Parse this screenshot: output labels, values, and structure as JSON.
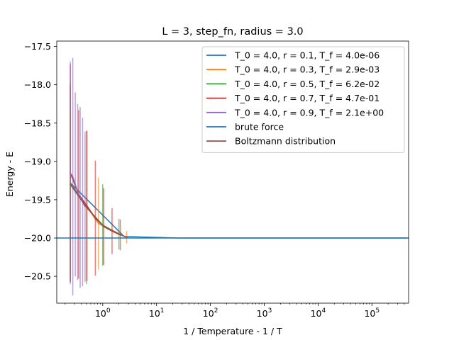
{
  "chart_data": {
    "type": "line",
    "title": "L = 3, step_fn, radius = 3.0",
    "xlabel": "1 / Temperature - 1 / T",
    "ylabel": "Energy - E",
    "xscale": "log",
    "xlim": [
      0.14,
      480000
    ],
    "ylim": [
      -20.85,
      -17.43
    ],
    "grid": false,
    "legend_position": "top-right",
    "x_ticks": [
      {
        "value": 1,
        "base": "10",
        "exp": "0"
      },
      {
        "value": 10,
        "base": "10",
        "exp": "1"
      },
      {
        "value": 100,
        "base": "10",
        "exp": "2"
      },
      {
        "value": 1000,
        "base": "10",
        "exp": "3"
      },
      {
        "value": 10000,
        "base": "10",
        "exp": "4"
      },
      {
        "value": 100000,
        "base": "10",
        "exp": "5"
      }
    ],
    "y_ticks": [
      {
        "value": -17.5,
        "label": "−17.5"
      },
      {
        "value": -18.0,
        "label": "−18.0"
      },
      {
        "value": -18.5,
        "label": "−18.5"
      },
      {
        "value": -19.0,
        "label": "−19.0"
      },
      {
        "value": -19.5,
        "label": "−19.5"
      },
      {
        "value": -20.0,
        "label": "−20.0"
      },
      {
        "value": -20.5,
        "label": "−20.5"
      }
    ],
    "series": [
      {
        "name": "T_0 = 4.0, r = 0.1, T_f = 4.0e-06",
        "color": "#1f77b4",
        "x": [
          0.25,
          2.5,
          25,
          250,
          2500,
          25000,
          480000
        ],
        "y": [
          -19.28,
          -19.98,
          -20.0,
          -20.0,
          -20.0,
          -20.0,
          -20.0
        ],
        "err": [
          0.0,
          0.0,
          0.0,
          0.0,
          0.0,
          0.0,
          0.0
        ]
      },
      {
        "name": "T_0 = 4.0, r = 0.3, T_f = 2.9e-03",
        "color": "#ff7f0e",
        "x": [
          0.25,
          0.833,
          2.78
        ],
        "y": [
          -19.28,
          -19.81,
          -19.99
        ],
        "err": [
          1.25,
          0.6,
          0.08
        ]
      },
      {
        "name": "T_0 = 4.0, r = 0.5, T_f = 6.2e-02",
        "color": "#2ca02c",
        "x": [
          0.25,
          0.5,
          1.0,
          2.0
        ],
        "y": [
          -19.28,
          -19.6,
          -19.83,
          -19.95
        ],
        "err": [
          1.3,
          1.0,
          0.53,
          0.2
        ]
      },
      {
        "name": "T_0 = 4.0, r = 0.7, T_f = 4.7e-01",
        "color": "#d62728",
        "x": [
          0.25,
          0.357,
          0.51,
          0.729,
          1.04,
          1.49,
          2.12
        ],
        "y": [
          -19.15,
          -19.43,
          -19.58,
          -19.74,
          -19.85,
          -19.91,
          -19.96
        ],
        "err": [
          1.42,
          1.1,
          0.98,
          0.75,
          0.5,
          0.3,
          0.2
        ]
      },
      {
        "name": "T_0 = 4.0, r = 0.9, T_f = 2.1e+00",
        "color": "#9467bd",
        "x": [
          0.25,
          0.278,
          0.309,
          0.343,
          0.381,
          0.423,
          0.47
        ],
        "y": [
          -19.15,
          -19.2,
          -19.3,
          -19.4,
          -19.47,
          -19.53,
          -19.59
        ],
        "err": [
          1.45,
          1.55,
          1.2,
          1.15,
          1.18,
          1.1,
          0.98
        ]
      },
      {
        "name": "brute force",
        "color": "#1f77b4",
        "x": [
          0.14,
          480000
        ],
        "y": [
          -20.0,
          -20.0
        ],
        "err": [
          0.0,
          0.0
        ]
      },
      {
        "name": "Boltzmann distribution",
        "color": "#8c564b",
        "x": [
          0.25,
          0.5,
          1.0,
          2.0,
          2.78
        ],
        "y": [
          -19.3,
          -19.6,
          -19.84,
          -19.95,
          -19.99
        ],
        "err": [
          0.0,
          0.0,
          0.0,
          0.0,
          0.0
        ]
      }
    ]
  }
}
